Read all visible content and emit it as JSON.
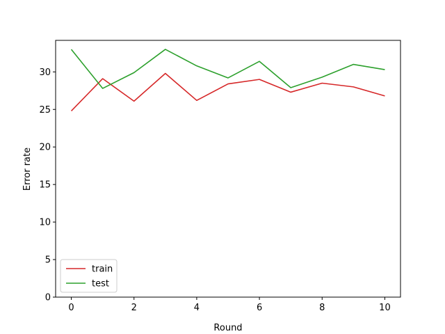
{
  "chart_data": {
    "type": "line",
    "title": "",
    "xlabel": "Round",
    "ylabel": "Error rate",
    "xlim": [
      -0.5,
      10.5
    ],
    "ylim": [
      0,
      34.2
    ],
    "xticks": [
      0,
      2,
      4,
      6,
      8,
      10
    ],
    "yticks": [
      0,
      5,
      10,
      15,
      20,
      25,
      30
    ],
    "grid": false,
    "legend_position": "lower-left",
    "x": [
      0,
      1,
      2,
      3,
      4,
      5,
      6,
      7,
      8,
      9,
      10
    ],
    "series": [
      {
        "name": "train",
        "color": "#d62728",
        "values": [
          24.8,
          29.1,
          26.1,
          29.8,
          26.2,
          28.4,
          29.0,
          27.3,
          28.5,
          28.0,
          26.8
        ]
      },
      {
        "name": "test",
        "color": "#2ca02c",
        "values": [
          33.0,
          27.8,
          29.9,
          33.0,
          30.8,
          29.2,
          31.4,
          27.9,
          29.3,
          31.0,
          30.3
        ]
      }
    ]
  }
}
